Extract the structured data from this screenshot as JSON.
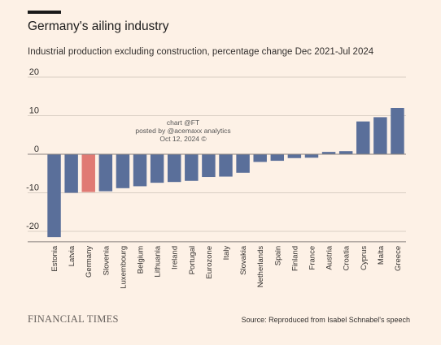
{
  "header": {
    "title": "Germany's ailing industry",
    "subtitle": "Industrial production excluding construction, percentage change Dec 2021-Jul 2024"
  },
  "watermark": {
    "line1": "chart @FT",
    "line2": "posted by @acemaxx analytics",
    "line3": "Oct 12, 2024 ©"
  },
  "footer": {
    "logo": "FINANCIAL TIMES",
    "source": "Source: Reproduced from Isabel Schnabel's speech"
  },
  "colors": {
    "bar": "#5a6f9a",
    "highlight": "#e07a74",
    "grid": "#d9cec4",
    "zero": "#8a8480"
  },
  "chart_data": {
    "type": "bar",
    "categories": [
      "Estonia",
      "Latvia",
      "Germany",
      "Slovenia",
      "Luxembourg",
      "Belgium",
      "Lithuania",
      "Ireland",
      "Portugal",
      "Eurozone",
      "Italy",
      "Slovakia",
      "Netherlands",
      "Spain",
      "Finland",
      "France",
      "Austria",
      "Croatia",
      "Cyprus",
      "Malta",
      "Greece"
    ],
    "values": [
      -21.5,
      -10.0,
      -9.8,
      -9.6,
      -8.8,
      -8.3,
      -7.4,
      -7.2,
      -6.9,
      -5.9,
      -5.8,
      -4.8,
      -2.0,
      -1.7,
      -1.0,
      -0.9,
      0.6,
      0.8,
      8.5,
      9.6,
      12.0
    ],
    "highlight": "Germany",
    "ylim": [
      -22.5,
      20
    ],
    "yticks": [
      20,
      10,
      0,
      -10,
      -20
    ],
    "ytick_labels": [
      "20",
      "10",
      "0",
      "-10",
      "-20"
    ],
    "grid": true,
    "xlabel": "",
    "ylabel": ""
  }
}
